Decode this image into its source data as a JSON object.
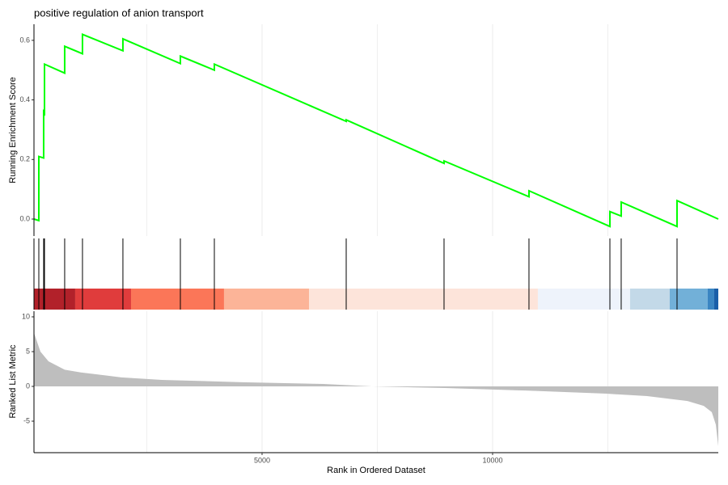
{
  "chart_data": [
    {
      "type": "line",
      "title": "positive regulation of anion transport",
      "y_label": "Running Enrichment Score",
      "color": "#00ff00",
      "x": [
        53,
        158,
        158,
        263,
        263,
        281,
        281,
        719,
        719,
        1105,
        1105,
        1982,
        1982,
        3228,
        3228,
        3965,
        3965,
        6825,
        6825,
        8947,
        8947,
        10789,
        10789,
        12544,
        12544,
        12789,
        12789,
        14000,
        14000,
        14895
      ],
      "values": [
        0.0,
        -0.005,
        0.21,
        0.205,
        0.36,
        0.355,
        0.52,
        0.49,
        0.58,
        0.555,
        0.62,
        0.565,
        0.605,
        0.522,
        0.547,
        0.5,
        0.52,
        0.328,
        0.333,
        0.187,
        0.195,
        0.075,
        0.095,
        -0.025,
        0.025,
        0.01,
        0.057,
        -0.025,
        0.062,
        0.0
      ],
      "xlim": [
        53,
        14895
      ],
      "ylim": [
        -0.057,
        0.654
      ],
      "yticks": [
        {
          "value": 0,
          "label": "0.0"
        },
        0.2,
        0.4,
        0.6
      ]
    },
    {
      "type": "rug",
      "color": "#000000",
      "values": [
        158,
        263,
        281,
        719,
        1105,
        1982,
        3228,
        3965,
        6825,
        8947,
        10789,
        12544,
        12789,
        14000
      ],
      "xlim": [
        53,
        14895
      ],
      "band": [
        {
          "from": 53,
          "to": 947,
          "color": "#b2212a"
        },
        {
          "from": 947,
          "to": 2158,
          "color": "#e03c3c"
        },
        {
          "from": 2158,
          "to": 4175,
          "color": "#fb7658"
        },
        {
          "from": 4175,
          "to": 6018,
          "color": "#fcb498"
        },
        {
          "from": 6018,
          "to": 10982,
          "color": "#fde4da"
        },
        {
          "from": 10982,
          "to": 12982,
          "color": "#eef3fb"
        },
        {
          "from": 12982,
          "to": 13842,
          "color": "#c3d9e8"
        },
        {
          "from": 13842,
          "to": 14667,
          "color": "#72b0d8"
        },
        {
          "from": 14667,
          "to": 14807,
          "color": "#3a85c2"
        },
        {
          "from": 14807,
          "to": 14895,
          "color": "#1a5ea8"
        }
      ]
    },
    {
      "type": "area",
      "y_label": "Ranked List Metric",
      "x_label": "Rank in Ordered Dataset",
      "color": "#bebebe",
      "x": [
        53,
        193,
        368,
        719,
        1070,
        1947,
        2825,
        4579,
        6333,
        7386,
        8965,
        10719,
        12474,
        13351,
        14228,
        14579,
        14754,
        14842,
        14895
      ],
      "values": [
        7.7,
        5,
        3.6,
        2.4,
        2.0,
        1.3,
        0.93,
        0.6,
        0.35,
        0,
        -0.23,
        -0.6,
        -1.05,
        -1.4,
        -2.1,
        -2.8,
        -3.7,
        -5.5,
        -8.6
      ],
      "xlim": [
        53,
        14895
      ],
      "ylim": [
        -9.53,
        10.81
      ],
      "xticks": [
        5000,
        10000
      ],
      "x_minor_grid": [
        2500,
        7500,
        12500
      ],
      "yticks": [
        10,
        5,
        0,
        -5
      ]
    }
  ]
}
